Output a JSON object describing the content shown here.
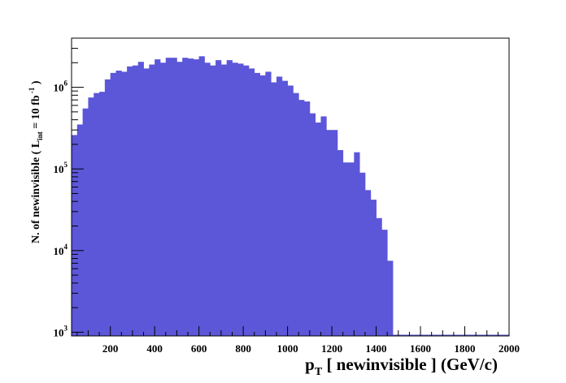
{
  "chart_data": {
    "type": "bar",
    "title": "",
    "xlabel": {
      "main": "p",
      "sub": "T",
      "rest": " [ newinvisible ] (GeV/c)"
    },
    "ylabel": {
      "pre": "N. of newinvisible ( L",
      "sub": "int",
      "mid": " = 10 fb",
      "sup": " -1",
      "post": " )"
    },
    "xlim": [
      25,
      2000
    ],
    "ylim": [
      900,
      4000000
    ],
    "yscale": "log",
    "grid": false,
    "legend": "none",
    "bar_color": "#5c56d9",
    "bin_width": 25,
    "x_tick_labels": [
      "200",
      "400",
      "600",
      "800",
      "1000",
      "1200",
      "1400",
      "1600",
      "1800",
      "2000"
    ],
    "y_tick_labels": [
      {
        "base": "10",
        "exp": "3",
        "value": 1000
      },
      {
        "base": "10",
        "exp": "4",
        "value": 10000
      },
      {
        "base": "10",
        "exp": "5",
        "value": 100000
      },
      {
        "base": "10",
        "exp": "6",
        "value": 1000000
      }
    ],
    "bins_x_start": [
      25,
      50,
      75,
      100,
      125,
      150,
      175,
      200,
      225,
      250,
      275,
      300,
      325,
      350,
      375,
      400,
      425,
      450,
      475,
      500,
      525,
      550,
      575,
      600,
      625,
      650,
      675,
      700,
      725,
      750,
      775,
      800,
      825,
      850,
      875,
      900,
      925,
      950,
      975,
      1000,
      1025,
      1050,
      1075,
      1100,
      1125,
      1150,
      1175,
      1200,
      1225,
      1250,
      1275,
      1300,
      1325,
      1350,
      1375,
      1400,
      1425,
      1450
    ],
    "values": [
      260000,
      350000,
      550000,
      750000,
      850000,
      880000,
      1250000,
      1500000,
      1600000,
      1550000,
      1800000,
      1850000,
      2050000,
      1700000,
      1900000,
      2200000,
      2000000,
      2300000,
      2300000,
      2050000,
      2300000,
      2250000,
      2200000,
      2400000,
      2000000,
      1850000,
      2150000,
      1900000,
      2150000,
      2000000,
      1950000,
      1850000,
      1700000,
      1500000,
      1400000,
      1550000,
      1150000,
      1350000,
      1200000,
      1050000,
      850000,
      700000,
      670000,
      480000,
      370000,
      440000,
      300000,
      300000,
      170000,
      120000,
      120000,
      160000,
      90000,
      55000,
      42000,
      25000,
      18000,
      7500
    ]
  }
}
